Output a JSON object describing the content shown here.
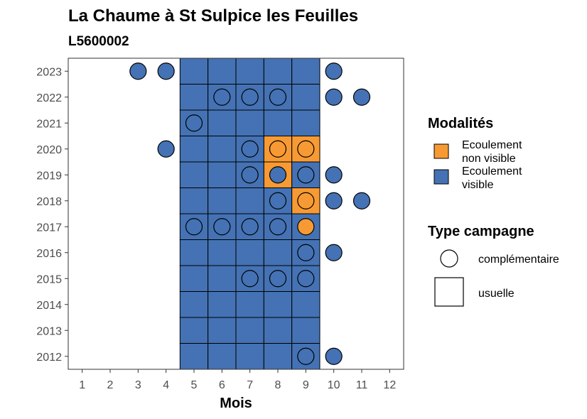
{
  "chart_data": {
    "type": "heatmap",
    "title": "La Chaume à St Sulpice les Feuilles",
    "subtitle": "L5600002",
    "xlabel": "Mois",
    "ylabel": "",
    "x_ticks": [
      1,
      2,
      3,
      4,
      5,
      6,
      7,
      8,
      9,
      10,
      11,
      12
    ],
    "y_ticks": [
      2012,
      2013,
      2014,
      2015,
      2016,
      2017,
      2018,
      2019,
      2020,
      2021,
      2022,
      2023
    ],
    "xlim": [
      0.5,
      12.5
    ],
    "ylim": [
      2011.5,
      2023.5
    ],
    "grid": false,
    "colors": {
      "Ecoulement non visible": "#f89a33",
      "Ecoulement visible": "#4472b4"
    },
    "usuelle": {
      "months": [
        5,
        6,
        7,
        8,
        9
      ],
      "years": [
        2012,
        2013,
        2014,
        2015,
        2016,
        2017,
        2018,
        2019,
        2020,
        2021,
        2022,
        2023
      ],
      "non_visible": [
        [
          2020,
          8
        ],
        [
          2020,
          9
        ],
        [
          2019,
          8
        ],
        [
          2018,
          9
        ]
      ]
    },
    "complementaire": [
      {
        "year": 2023,
        "month": 3,
        "mod": "Ecoulement visible"
      },
      {
        "year": 2023,
        "month": 4,
        "mod": "Ecoulement visible"
      },
      {
        "year": 2023,
        "month": 10,
        "mod": "Ecoulement visible"
      },
      {
        "year": 2022,
        "month": 6,
        "mod": "Ecoulement visible"
      },
      {
        "year": 2022,
        "month": 7,
        "mod": "Ecoulement visible"
      },
      {
        "year": 2022,
        "month": 8,
        "mod": "Ecoulement visible"
      },
      {
        "year": 2022,
        "month": 10,
        "mod": "Ecoulement visible"
      },
      {
        "year": 2022,
        "month": 11,
        "mod": "Ecoulement visible"
      },
      {
        "year": 2021,
        "month": 5,
        "mod": "Ecoulement visible"
      },
      {
        "year": 2020,
        "month": 4,
        "mod": "Ecoulement visible"
      },
      {
        "year": 2020,
        "month": 7,
        "mod": "Ecoulement visible"
      },
      {
        "year": 2020,
        "month": 8,
        "mod": "Ecoulement non visible"
      },
      {
        "year": 2020,
        "month": 9,
        "mod": "Ecoulement non visible"
      },
      {
        "year": 2019,
        "month": 7,
        "mod": "Ecoulement visible"
      },
      {
        "year": 2019,
        "month": 8,
        "mod": "Ecoulement visible"
      },
      {
        "year": 2019,
        "month": 9,
        "mod": "Ecoulement visible"
      },
      {
        "year": 2019,
        "month": 10,
        "mod": "Ecoulement visible"
      },
      {
        "year": 2018,
        "month": 8,
        "mod": "Ecoulement visible"
      },
      {
        "year": 2018,
        "month": 9,
        "mod": "Ecoulement non visible"
      },
      {
        "year": 2018,
        "month": 10,
        "mod": "Ecoulement visible"
      },
      {
        "year": 2018,
        "month": 11,
        "mod": "Ecoulement visible"
      },
      {
        "year": 2017,
        "month": 5,
        "mod": "Ecoulement visible"
      },
      {
        "year": 2017,
        "month": 6,
        "mod": "Ecoulement visible"
      },
      {
        "year": 2017,
        "month": 7,
        "mod": "Ecoulement visible"
      },
      {
        "year": 2017,
        "month": 8,
        "mod": "Ecoulement visible"
      },
      {
        "year": 2017,
        "month": 9,
        "mod": "Ecoulement non visible"
      },
      {
        "year": 2016,
        "month": 9,
        "mod": "Ecoulement visible"
      },
      {
        "year": 2016,
        "month": 10,
        "mod": "Ecoulement visible"
      },
      {
        "year": 2015,
        "month": 7,
        "mod": "Ecoulement visible"
      },
      {
        "year": 2015,
        "month": 8,
        "mod": "Ecoulement visible"
      },
      {
        "year": 2015,
        "month": 9,
        "mod": "Ecoulement visible"
      },
      {
        "year": 2012,
        "month": 9,
        "mod": "Ecoulement visible"
      },
      {
        "year": 2012,
        "month": 10,
        "mod": "Ecoulement visible"
      }
    ],
    "legend": {
      "position": "right",
      "modalites_title": "Modalités",
      "modalites": [
        {
          "line1": "Ecoulement",
          "line2": "non visible",
          "color": "#f89a33"
        },
        {
          "line1": "Ecoulement",
          "line2": "visible",
          "color": "#4472b4"
        }
      ],
      "type_title": "Type campagne",
      "types": [
        {
          "label": "complémentaire",
          "shape": "circle"
        },
        {
          "label": "usuelle",
          "shape": "square"
        }
      ]
    }
  }
}
